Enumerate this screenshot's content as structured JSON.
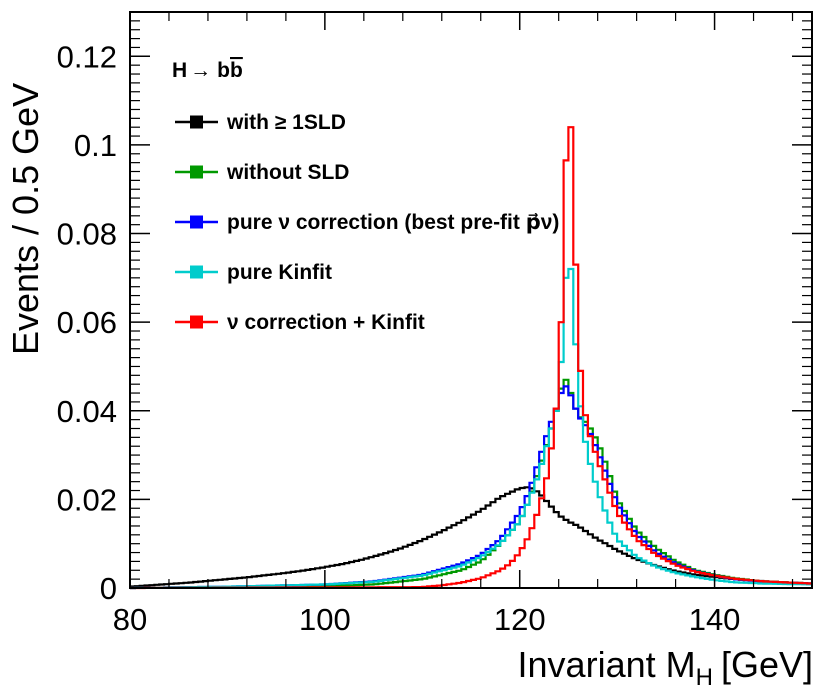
{
  "chart_data": {
    "type": "line",
    "title": "H→ bb̄",
    "xlabel": "Invariant M",
    "xlabel_sub": "H",
    "xlabel_unit": "[GeV]",
    "ylabel": "Events / 0.5 GeV",
    "xlim": [
      80,
      150
    ],
    "ylim": [
      0,
      0.13
    ],
    "xticks": [
      80,
      100,
      120,
      140
    ],
    "xtick_labels": [
      "80",
      "100",
      "120",
      "140"
    ],
    "yticks": [
      0,
      0.02,
      0.04,
      0.06,
      0.08,
      0.1,
      0.12
    ],
    "ytick_labels": [
      "0",
      "0.02",
      "0.04",
      "0.06",
      "0.08",
      "0.1",
      "0.12"
    ],
    "grid": false,
    "legend_position": "top-left",
    "bin_width": 0.5,
    "series": [
      {
        "name": "with ≥ 1SLD",
        "color": "#000000",
        "x": [
          80,
          82,
          84,
          86,
          88,
          90,
          92,
          94,
          96,
          98,
          100,
          102,
          104,
          106,
          108,
          110,
          112,
          114,
          116,
          118,
          119,
          120,
          121,
          122,
          123,
          124,
          125,
          126,
          127,
          128,
          129,
          130,
          132,
          134,
          136,
          138,
          140,
          142,
          144,
          146,
          148,
          150
        ],
        "y": [
          0.0003,
          0.0006,
          0.0009,
          0.0012,
          0.0016,
          0.002,
          0.0024,
          0.0029,
          0.0034,
          0.004,
          0.0047,
          0.0055,
          0.0065,
          0.0077,
          0.0091,
          0.0108,
          0.0128,
          0.015,
          0.0175,
          0.0205,
          0.0215,
          0.0225,
          0.0228,
          0.0215,
          0.019,
          0.0165,
          0.015,
          0.014,
          0.0125,
          0.011,
          0.0098,
          0.0085,
          0.0065,
          0.005,
          0.0038,
          0.003,
          0.0025,
          0.002,
          0.0017,
          0.0014,
          0.0012,
          0.001
        ]
      },
      {
        "name": "without SLD",
        "color": "#009900",
        "x": [
          80,
          90,
          100,
          105,
          110,
          114,
          116,
          118,
          120,
          121,
          122,
          123,
          124,
          124.5,
          125,
          125.5,
          126,
          127,
          128,
          129,
          130,
          132,
          134,
          136,
          138,
          140,
          142,
          145,
          150
        ],
        "y": [
          0,
          0.0002,
          0.0004,
          0.0008,
          0.002,
          0.004,
          0.006,
          0.01,
          0.015,
          0.02,
          0.027,
          0.034,
          0.042,
          0.048,
          0.046,
          0.042,
          0.039,
          0.037,
          0.033,
          0.027,
          0.02,
          0.013,
          0.009,
          0.006,
          0.004,
          0.003,
          0.0022,
          0.0015,
          0.001
        ]
      },
      {
        "name": "pure ν correction (best pre-fit p⃗ν)",
        "color": "#0000ff",
        "x": [
          80,
          90,
          100,
          105,
          110,
          114,
          116,
          118,
          120,
          121,
          122,
          123,
          124,
          124.5,
          125,
          125.5,
          126,
          127,
          128,
          129,
          130,
          132,
          134,
          136,
          138,
          140,
          142,
          145,
          150
        ],
        "y": [
          0,
          0.0003,
          0.0008,
          0.0015,
          0.003,
          0.0055,
          0.0075,
          0.011,
          0.017,
          0.022,
          0.029,
          0.036,
          0.042,
          0.046,
          0.045,
          0.042,
          0.039,
          0.036,
          0.031,
          0.025,
          0.019,
          0.012,
          0.008,
          0.0055,
          0.0038,
          0.0028,
          0.002,
          0.0014,
          0.001
        ]
      },
      {
        "name": "pure Kinfit",
        "color": "#00cccc",
        "x": [
          80,
          90,
          100,
          105,
          110,
          114,
          116,
          118,
          120,
          121,
          122,
          123,
          124,
          124.5,
          125,
          125.5,
          126,
          126.5,
          127,
          128,
          129,
          130,
          132,
          134,
          136,
          138,
          140,
          142,
          145,
          150
        ],
        "y": [
          0,
          0.0003,
          0.0008,
          0.0014,
          0.0028,
          0.005,
          0.007,
          0.01,
          0.015,
          0.02,
          0.026,
          0.034,
          0.042,
          0.06,
          0.08,
          0.064,
          0.046,
          0.036,
          0.03,
          0.022,
          0.016,
          0.011,
          0.007,
          0.0048,
          0.0034,
          0.0025,
          0.0018,
          0.0013,
          0.001,
          0.0008
        ]
      },
      {
        "name": "ν correction + Kinfit",
        "color": "#ff0000",
        "x": [
          80,
          110,
          112,
          114,
          116,
          118,
          119,
          120,
          121,
          122,
          123,
          124,
          124.5,
          125,
          125.5,
          126,
          126.5,
          127,
          128,
          129,
          130,
          132,
          134,
          136,
          138,
          140,
          142,
          145,
          150
        ],
        "y": [
          0,
          0.0002,
          0.0006,
          0.0012,
          0.0022,
          0.004,
          0.0055,
          0.008,
          0.012,
          0.018,
          0.027,
          0.045,
          0.075,
          0.118,
          0.09,
          0.056,
          0.042,
          0.036,
          0.029,
          0.023,
          0.017,
          0.011,
          0.0075,
          0.0052,
          0.0037,
          0.0028,
          0.0021,
          0.0015,
          0.001
        ]
      }
    ]
  }
}
